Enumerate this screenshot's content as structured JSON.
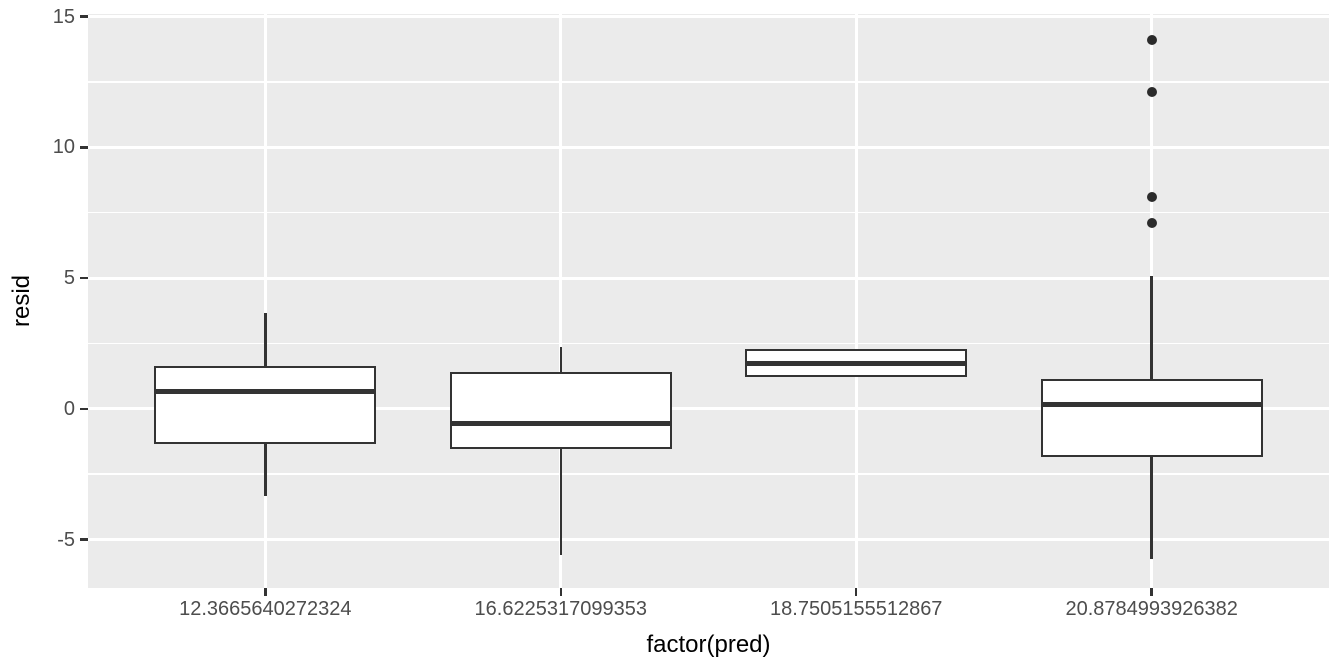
{
  "chart_data": {
    "type": "boxplot",
    "title": "",
    "xlabel": "factor(pred)",
    "ylabel": "resid",
    "categories": [
      "12.3665640272324",
      "16.6225317099353",
      "18.7505155512867",
      "20.8784993926382"
    ],
    "series": [
      {
        "category": "12.3665640272324",
        "whisker_low": -3.35,
        "q1": -1.35,
        "median": 0.65,
        "q3": 1.65,
        "whisker_high": 3.65,
        "outliers": []
      },
      {
        "category": "16.6225317099353",
        "whisker_low": -5.6,
        "q1": -1.55,
        "median": -0.55,
        "q3": 1.4,
        "whisker_high": 2.35,
        "outliers": []
      },
      {
        "category": "18.7505155512867",
        "whisker_low": 1.2,
        "q1": 1.2,
        "median": 1.75,
        "q3": 2.3,
        "whisker_high": 2.3,
        "outliers": []
      },
      {
        "category": "20.8784993926382",
        "whisker_low": -5.75,
        "q1": -1.85,
        "median": 0.15,
        "q3": 1.15,
        "whisker_high": 5.1,
        "outliers": [
          7.1,
          8.1,
          12.1,
          14.1
        ]
      }
    ],
    "y_major_ticks": [
      "15",
      "10",
      "5",
      "0",
      "-5"
    ],
    "y_minor_gridlines": [
      12.5,
      7.5,
      2.5,
      -2.5
    ],
    "ylim": [
      -6.85,
      15.1
    ],
    "x_axis_type": "discrete",
    "grid": "major+minor white on grey panel",
    "legend": "none"
  },
  "colors": {
    "figure_background": "#FFFFFF",
    "panel_background": "#EBEBEB",
    "gridline": "#FFFFFF",
    "box_fill": "#FFFFFF",
    "box_stroke": "#333333",
    "outlier": "#2B2B2B",
    "tick_mark": "#333333",
    "tick_label": "#4D4D4D",
    "axis_title": "#000000"
  }
}
